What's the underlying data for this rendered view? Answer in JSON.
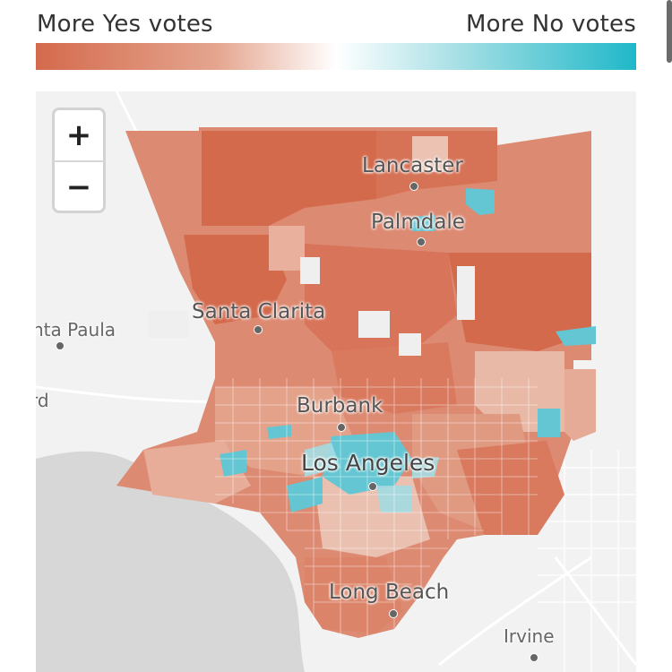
{
  "legend": {
    "left_label": "More Yes votes",
    "right_label": "More No votes",
    "colors": {
      "yes": "#d46a4c",
      "neutral": "#ffffff",
      "no": "#1fb8c9"
    }
  },
  "zoom": {
    "in_label": "+",
    "out_label": "−"
  },
  "cities": [
    {
      "name": "Lancaster"
    },
    {
      "name": "Palmdale"
    },
    {
      "name": "Santa Clarita"
    },
    {
      "name": "nta Paula"
    },
    {
      "name": "Burbank"
    },
    {
      "name": "Los Angeles"
    },
    {
      "name": "Long Beach"
    },
    {
      "name": "Irvine"
    },
    {
      "name": "rd"
    }
  ],
  "map_colors": {
    "background": "#f2f2f2",
    "ocean": "#d7d7d7",
    "roads": "#ffffff"
  }
}
